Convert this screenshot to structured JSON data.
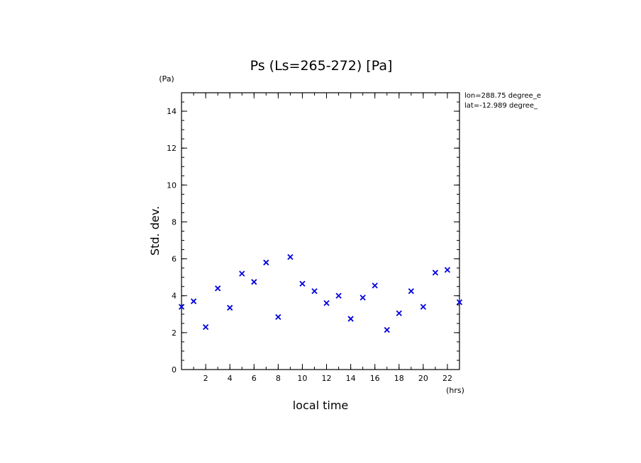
{
  "chart_data": {
    "type": "scatter",
    "title": "Ps (Ls=265-272) [Pa]",
    "xlabel": "local time",
    "ylabel": "Std. dev.",
    "x_unit": "(hrs)",
    "y_unit": "(Pa)",
    "annotations": [
      "lon=288.75 degree_e",
      "lat=-12.989 degree_"
    ],
    "xlim": [
      0,
      23
    ],
    "ylim": [
      0,
      15
    ],
    "x_ticks": [
      2,
      4,
      6,
      8,
      10,
      12,
      14,
      16,
      18,
      20,
      22
    ],
    "y_ticks": [
      0,
      2,
      4,
      6,
      8,
      10,
      12,
      14
    ],
    "marker": "x",
    "marker_color": "#0000dd",
    "grid": false,
    "series": [
      {
        "x": [
          0,
          1,
          2,
          3,
          4,
          5,
          6,
          7,
          8,
          9,
          10,
          11,
          12,
          13,
          14,
          15,
          16,
          17,
          18,
          19,
          20,
          21,
          22,
          23
        ],
        "y": [
          3.4,
          3.7,
          2.3,
          4.4,
          3.35,
          5.2,
          4.75,
          5.8,
          2.85,
          6.1,
          4.65,
          4.25,
          3.6,
          4.0,
          2.75,
          3.9,
          4.55,
          2.15,
          3.05,
          4.25,
          3.4,
          5.25,
          5.4,
          3.65
        ]
      }
    ]
  }
}
